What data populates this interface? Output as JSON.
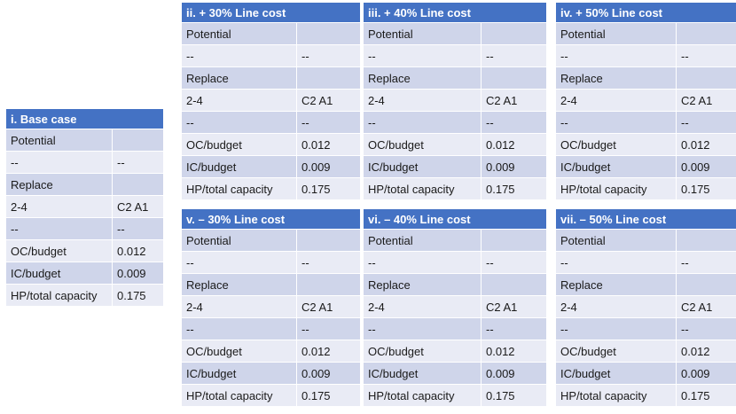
{
  "tables": [
    {
      "title": "i. Base case",
      "rows": [
        [
          "Potential",
          ""
        ],
        [
          "--",
          "--"
        ],
        [
          "Replace",
          ""
        ],
        [
          "2-4",
          "C2 A1"
        ],
        [
          "--",
          "--"
        ],
        [
          "OC/budget",
          "0.012"
        ],
        [
          "IC/budget",
          "0.009"
        ],
        [
          "HP/total capacity",
          "0.175"
        ]
      ]
    },
    {
      "title": "ii. + 30% Line cost",
      "rows": [
        [
          "Potential",
          ""
        ],
        [
          "--",
          "--"
        ],
        [
          "Replace",
          ""
        ],
        [
          "2-4",
          "C2 A1"
        ],
        [
          "--",
          "--"
        ],
        [
          "OC/budget",
          "0.012"
        ],
        [
          "IC/budget",
          "0.009"
        ],
        [
          "HP/total capacity",
          "0.175"
        ]
      ]
    },
    {
      "title": "iii. + 40% Line cost",
      "rows": [
        [
          "Potential",
          ""
        ],
        [
          "--",
          "--"
        ],
        [
          "Replace",
          ""
        ],
        [
          "2-4",
          "C2 A1"
        ],
        [
          "--",
          "--"
        ],
        [
          "OC/budget",
          "0.012"
        ],
        [
          "IC/budget",
          "0.009"
        ],
        [
          "HP/total capacity",
          "0.175"
        ]
      ]
    },
    {
      "title": "iv. + 50% Line cost",
      "rows": [
        [
          "Potential",
          ""
        ],
        [
          "--",
          "--"
        ],
        [
          "Replace",
          ""
        ],
        [
          "2-4",
          "C2 A1"
        ],
        [
          "--",
          "--"
        ],
        [
          "OC/budget",
          "0.012"
        ],
        [
          "IC/budget",
          "0.009"
        ],
        [
          "HP/total capacity",
          "0.175"
        ]
      ]
    },
    {
      "title": "v. – 30% Line cost",
      "rows": [
        [
          "Potential",
          ""
        ],
        [
          "--",
          "--"
        ],
        [
          "Replace",
          ""
        ],
        [
          "2-4",
          "C2 A1"
        ],
        [
          "--",
          "--"
        ],
        [
          "OC/budget",
          "0.012"
        ],
        [
          "IC/budget",
          "0.009"
        ],
        [
          "HP/total capacity",
          "0.175"
        ]
      ]
    },
    {
      "title": "vi. – 40% Line cost",
      "rows": [
        [
          "Potential",
          ""
        ],
        [
          "--",
          "--"
        ],
        [
          "Replace",
          ""
        ],
        [
          "2-4",
          "C2 A1"
        ],
        [
          "--",
          "--"
        ],
        [
          "OC/budget",
          "0.012"
        ],
        [
          "IC/budget",
          "0.009"
        ],
        [
          "HP/total capacity",
          "0.175"
        ]
      ]
    },
    {
      "title": "vii. – 50%  Line cost",
      "rows": [
        [
          "Potential",
          ""
        ],
        [
          "--",
          "--"
        ],
        [
          "Replace",
          ""
        ],
        [
          "2-4",
          "C2 A1"
        ],
        [
          "--",
          "--"
        ],
        [
          "OC/budget",
          "0.012"
        ],
        [
          "IC/budget",
          "0.009"
        ],
        [
          "HP/total capacity",
          "0.175"
        ]
      ]
    }
  ]
}
